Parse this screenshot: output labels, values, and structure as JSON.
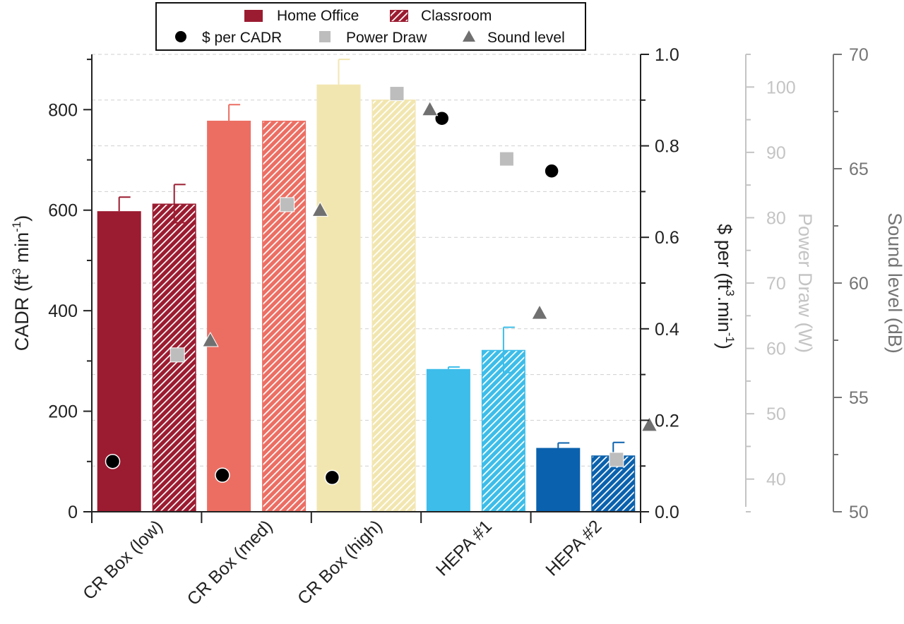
{
  "chart_data": {
    "type": "bar",
    "categories": [
      "CR Box (low)",
      "CR Box (med)",
      "CR Box (high)",
      "HEPA #1",
      "HEPA #2"
    ],
    "bar_colors": [
      "#9b1b30",
      "#ec6e63",
      "#f2e6b0",
      "#3dbde9",
      "#0a61ad"
    ],
    "series": [
      {
        "name": "Home Office",
        "style": "solid",
        "values": [
          598,
          778,
          850,
          284,
          127
        ],
        "errors": [
          28,
          32,
          50,
          4,
          10
        ]
      },
      {
        "name": "Classroom",
        "style": "hatched",
        "values": [
          613,
          778,
          820,
          322,
          112
        ],
        "errors": [
          38,
          0,
          0,
          45,
          26
        ]
      }
    ],
    "markers": [
      {
        "name": "$ per CADR",
        "shape": "circle",
        "color": "#000000",
        "axis": "$ per CADR",
        "values": [
          0.11,
          0.08,
          0.075,
          0.86,
          0.745
        ]
      },
      {
        "name": "Power Draw",
        "shape": "square",
        "color": "#bdbdbd",
        "axis": "Power Draw",
        "values": [
          59,
          82,
          99,
          89,
          43
        ]
      },
      {
        "name": "Sound level",
        "shape": "triangle",
        "color": "#707070",
        "axis": "Sound level",
        "values": [
          57.5,
          63.2,
          67.6,
          58.7,
          53.8
        ]
      }
    ],
    "axes": {
      "left": {
        "label_main": "CADR (ft",
        "label_sup1": "3",
        "label_mid": " min",
        "label_sup2": "-1",
        "label_end": ")",
        "ylim": [
          0,
          910
        ],
        "ticks": [
          0,
          200,
          400,
          600,
          800
        ],
        "color": "#222222"
      },
      "right1": {
        "label_main": "$ per (ft",
        "label_sup1": "3",
        "label_mid": ".min",
        "label_sup2": "-1",
        "label_end": ")",
        "ylim": [
          0,
          1.0
        ],
        "ticks": [
          "0.0",
          "0.2",
          "0.4",
          "0.6",
          "0.8",
          "1.0"
        ],
        "color": "#222222"
      },
      "right2": {
        "label": "Power Draw (W)",
        "ylim": [
          35,
          105
        ],
        "ticks": [
          40,
          50,
          60,
          70,
          80,
          90,
          100
        ],
        "color": "#c4c4c4"
      },
      "right3": {
        "label": "Sound level (dB)",
        "ylim": [
          50,
          70
        ],
        "ticks": [
          50,
          55,
          60,
          65,
          70
        ],
        "color": "#757575"
      }
    },
    "legend": {
      "position": "top-center",
      "row1": [
        "Home Office",
        "Classroom"
      ],
      "row2": [
        "$ per CADR",
        "Power Draw",
        "Sound level"
      ]
    },
    "grid": true
  }
}
